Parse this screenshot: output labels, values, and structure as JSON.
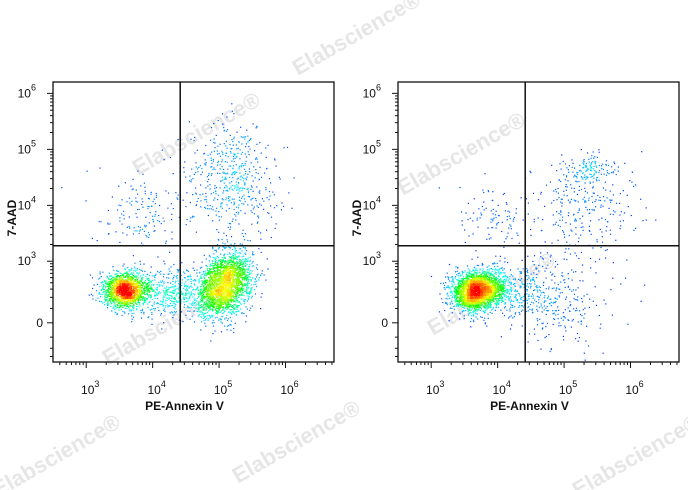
{
  "watermark": "Elabscience®",
  "chart_data": [
    {
      "type": "scatter",
      "subtype": "flow-cytometry density dot plot",
      "xlabel": "PE-Annexin V",
      "ylabel": "7-AAD",
      "x_scale": "log",
      "y_scale": "biexponential",
      "xlim": [
        316,
        5400000
      ],
      "ylim": [
        -1000,
        3000000
      ],
      "x_ticks": [
        {
          "base": "10",
          "exp": "3",
          "value": 1000
        },
        {
          "base": "10",
          "exp": "4",
          "value": 10000
        },
        {
          "base": "10",
          "exp": "5",
          "value": 100000
        },
        {
          "base": "10",
          "exp": "6",
          "value": 1000000
        }
      ],
      "y_ticks": [
        {
          "label": "0",
          "value": 0
        },
        {
          "base": "10",
          "exp": "3",
          "value": 1000
        },
        {
          "base": "10",
          "exp": "4",
          "value": 10000
        },
        {
          "base": "10",
          "exp": "5",
          "value": 100000
        },
        {
          "base": "10",
          "exp": "6",
          "value": 1000000
        }
      ],
      "quadrant_gate": {
        "x": 26000,
        "y": 1900
      },
      "grid": false,
      "color_scale": [
        "#0000ff",
        "#00ffff",
        "#00ff00",
        "#ffff00",
        "#ff0000"
      ],
      "populations": [
        {
          "x": 3800,
          "y": 290,
          "events": 1600
        },
        {
          "x": 120000,
          "y": 370,
          "events": 2200
        },
        {
          "x": 20000,
          "y": 250,
          "events": 500
        },
        {
          "x": 160000,
          "y": 30000,
          "events": 500
        },
        {
          "x": 8000,
          "y": 7000,
          "events": 150
        }
      ]
    },
    {
      "type": "scatter",
      "subtype": "flow-cytometry density dot plot",
      "xlabel": "PE-Annexin V",
      "ylabel": "7-AAD",
      "x_scale": "log",
      "y_scale": "biexponential",
      "xlim": [
        316,
        5400000
      ],
      "ylim": [
        -1000,
        3000000
      ],
      "x_ticks": [
        {
          "base": "10",
          "exp": "3",
          "value": 1000
        },
        {
          "base": "10",
          "exp": "4",
          "value": 10000
        },
        {
          "base": "10",
          "exp": "5",
          "value": 100000
        },
        {
          "base": "10",
          "exp": "6",
          "value": 1000000
        }
      ],
      "y_ticks": [
        {
          "label": "0",
          "value": 0
        },
        {
          "base": "10",
          "exp": "3",
          "value": 1000
        },
        {
          "base": "10",
          "exp": "4",
          "value": 10000
        },
        {
          "base": "10",
          "exp": "5",
          "value": 100000
        },
        {
          "base": "10",
          "exp": "6",
          "value": 1000000
        }
      ],
      "quadrant_gate": {
        "x": 26000,
        "y": 1900
      },
      "grid": false,
      "color_scale": [
        "#0000ff",
        "#00ffff",
        "#00ff00",
        "#ffff00",
        "#ff0000"
      ],
      "populations": [
        {
          "x": 5000,
          "y": 290,
          "events": 2600
        },
        {
          "x": 25000,
          "y": 250,
          "events": 300
        },
        {
          "x": 220000,
          "y": 45000,
          "events": 120
        },
        {
          "x": 200000,
          "y": 9000,
          "events": 250
        },
        {
          "x": 8000,
          "y": 6000,
          "events": 100
        },
        {
          "x": 100000,
          "y": 180,
          "events": 200
        }
      ]
    }
  ]
}
